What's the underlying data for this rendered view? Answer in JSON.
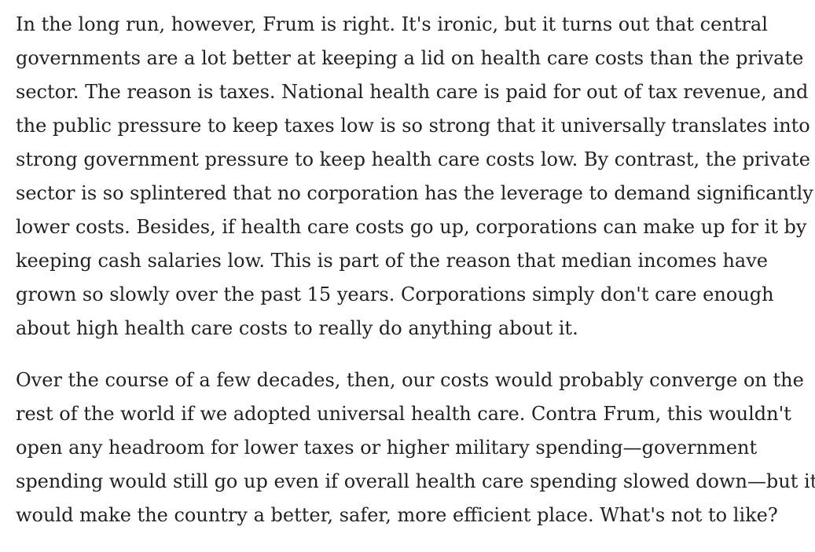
{
  "article": {
    "paragraphs": [
      {
        "lines": [
          "In the long run, however, Frum is right. It's ironic, but it turns out that central",
          "governments are a lot better at keeping a lid on health care costs than the private",
          "sector. The reason is taxes. National health care is paid for out of tax revenue, and",
          "the public pressure to keep taxes low is so strong that it universally translates into",
          "strong government pressure to keep health care costs low. By contrast, the private",
          "sector is so splintered that no corporation has the leverage to demand significantly",
          "lower costs. Besides, if health care costs go up, corporations can make up for it by",
          "keeping cash salaries low. This is part of the reason that median incomes have",
          "grown so slowly over the past 15 years. Corporations simply don't care enough",
          "about high health care costs to really do anything about it."
        ]
      },
      {
        "lines": [
          "Over the course of a few decades, then, our costs would probably converge on the",
          "rest of the world if we adopted universal health care. Contra Frum, this wouldn't",
          "open any headroom for lower taxes or higher military spending—government",
          "spending would still go up even if overall health care spending slowed down—but it",
          "would make the country a better, safer, more efficient place. What's not to like?"
        ]
      }
    ]
  }
}
